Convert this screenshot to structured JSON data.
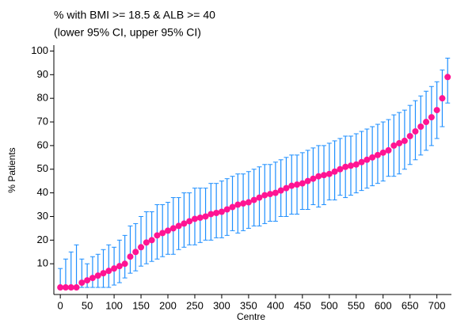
{
  "chart_data": {
    "type": "caterpillar",
    "title": "% with BMI >= 18.5 & ALB >= 40",
    "subtitle": "(lower 95% CI, upper 95% CI)",
    "x_label": "Centre",
    "y_label": "% Patients",
    "x": [
      0,
      10,
      20,
      30,
      40,
      50,
      60,
      70,
      80,
      90,
      100,
      110,
      120,
      130,
      140,
      150,
      160,
      170,
      180,
      190,
      200,
      210,
      220,
      230,
      240,
      250,
      260,
      270,
      280,
      290,
      300,
      310,
      320,
      330,
      340,
      350,
      360,
      370,
      380,
      390,
      400,
      410,
      420,
      430,
      440,
      450,
      460,
      470,
      480,
      490,
      500,
      510,
      520,
      530,
      540,
      550,
      560,
      570,
      580,
      590,
      600,
      610,
      620,
      630,
      640,
      650,
      660,
      670,
      680,
      690,
      700,
      710,
      720
    ],
    "values": [
      0,
      0,
      0,
      0,
      2,
      3,
      4,
      5,
      6,
      7,
      8,
      9,
      10,
      13,
      15,
      17,
      19,
      20,
      22,
      23,
      24,
      25,
      26,
      27,
      28,
      29,
      29.5,
      30,
      31,
      31.5,
      32,
      33,
      34,
      35,
      35.5,
      36,
      37,
      38,
      39,
      39.5,
      40,
      41,
      42,
      43,
      43.5,
      44,
      45,
      46,
      47,
      47.5,
      48,
      49,
      50,
      51,
      51.5,
      52,
      53,
      54,
      55,
      56,
      57,
      58,
      60,
      61,
      62,
      64,
      66,
      68,
      70,
      72,
      75,
      80,
      89
    ],
    "lower": [
      0,
      0,
      0,
      0,
      0,
      0,
      0,
      0,
      0,
      0,
      1,
      2,
      4,
      6,
      7,
      9,
      10,
      11,
      12,
      13,
      14,
      14,
      16,
      17,
      18,
      18,
      19,
      20,
      20,
      21,
      21,
      22,
      24,
      23,
      24,
      25,
      26,
      26,
      27,
      28,
      28,
      30,
      30,
      31,
      31,
      33,
      33,
      35,
      34,
      35,
      37,
      37,
      39,
      38,
      39,
      40,
      41,
      42,
      43,
      44,
      45,
      47,
      47,
      48,
      50,
      52,
      54,
      56,
      58,
      60,
      63,
      68,
      78
    ],
    "upper": [
      8,
      12,
      15,
      18,
      12,
      10,
      13,
      14,
      16,
      18,
      17,
      20,
      22,
      26,
      27,
      30,
      32,
      32,
      35,
      35,
      36,
      38,
      38,
      40,
      40,
      42,
      42,
      42,
      44,
      44,
      45,
      46,
      47,
      48,
      48,
      49,
      50,
      51,
      52,
      52,
      53,
      54,
      55,
      56,
      56,
      57,
      58,
      59,
      60,
      60,
      61,
      62,
      63,
      64,
      64,
      65,
      66,
      67,
      68,
      69,
      70,
      71,
      73,
      74,
      75,
      77,
      79,
      81,
      83,
      85,
      87,
      92,
      97
    ],
    "color": "#ff1493",
    "ci_color": "#1e8fff",
    "xlim": [
      -12,
      727
    ],
    "ylim": [
      -3,
      102.5
    ],
    "xticks": [
      0,
      50,
      100,
      150,
      200,
      250,
      300,
      350,
      400,
      450,
      500,
      550,
      600,
      650,
      700
    ],
    "yticks": [
      10,
      20,
      30,
      40,
      50,
      60,
      70,
      80,
      90,
      100
    ]
  }
}
